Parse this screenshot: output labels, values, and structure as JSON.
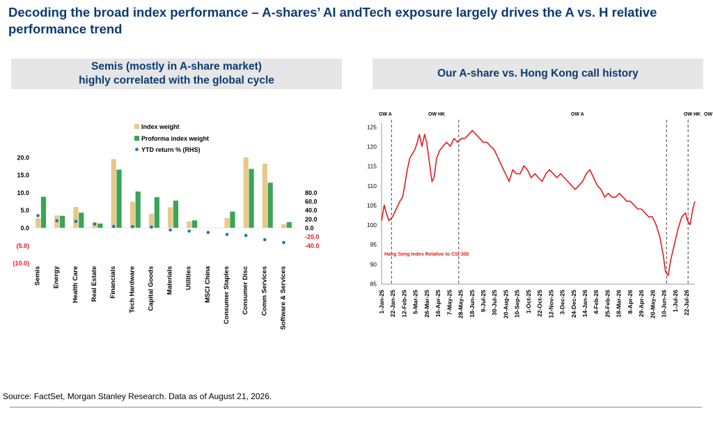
{
  "title": "Decoding the broad index performance – A-shares’ AI andTech exposure largely drives the A vs. H relative performance trend",
  "left_panel": {
    "header_line1": "Semis (mostly in A-share market)",
    "header_line2": "highly correlated with the global cycle"
  },
  "right_panel": {
    "header": "Our A-share vs. Hong Kong call history"
  },
  "source": "Source: FactSet, Morgan Stanley Research. Data as of August 21, 2026.",
  "colors": {
    "index_weight": "#e8c98a",
    "proforma_weight": "#3aa457",
    "ytd_return": "#1f77b4",
    "line": "#e8191d",
    "negative_tick": "#e8191d",
    "title": "#0b3b73"
  },
  "chart_data": [
    {
      "type": "bar",
      "title": "",
      "categories": [
        "Semis",
        "Energy",
        "Health Care",
        "Real Estate",
        "Financials",
        "Tech Hardware",
        "Capital Goods",
        "Materials",
        "Utilities",
        "MSCI China",
        "Consumer Staples",
        "Consumer Disc",
        "Comm Services",
        "Software & Services"
      ],
      "series": [
        {
          "name": "Index weight",
          "kind": "bar",
          "axis": "left",
          "values": [
            2.7,
            3.5,
            5.9,
            1.6,
            19.5,
            7.4,
            4.0,
            5.8,
            1.8,
            null,
            2.8,
            20.0,
            18.2,
            1.0
          ]
        },
        {
          "name": "Proforma index weight",
          "kind": "bar",
          "axis": "left",
          "values": [
            8.8,
            3.4,
            4.3,
            1.2,
            16.5,
            10.3,
            8.7,
            7.7,
            2.1,
            null,
            4.6,
            16.7,
            12.8,
            1.6
          ]
        },
        {
          "name": "YTD return % (RHS)",
          "kind": "scatter",
          "axis": "right",
          "values": [
            27.5,
            16.0,
            14.5,
            8.5,
            3.0,
            2.5,
            1.5,
            -5.0,
            -7.5,
            -10.5,
            -15.0,
            -17.5,
            -27.0,
            -33.5
          ]
        }
      ],
      "y_left": {
        "range": [
          -10,
          20
        ],
        "ticks": [
          "20.0",
          "15.0",
          "10.0",
          "5.0",
          "0.0",
          "(5.0)",
          "(10.0)"
        ]
      },
      "y_right": {
        "range": [
          -40,
          80
        ],
        "ticks": [
          "80.0",
          "60.0",
          "40.0",
          "20.0",
          "0.0",
          "-20.0",
          "-40.0"
        ]
      },
      "legend": {
        "position": "top-center",
        "entries": [
          "Index weight",
          "Proforma index weight",
          "YTD return % (RHS)"
        ]
      },
      "grid": false
    },
    {
      "type": "line",
      "title": "",
      "series_label": "Hang Seng Index Relative to CSI 300",
      "y_range": [
        85,
        125
      ],
      "y_ticks": [
        "125",
        "120",
        "115",
        "110",
        "105",
        "100",
        "95",
        "90",
        "85"
      ],
      "x_range": [
        "2025-01-01",
        "2026-08-21"
      ],
      "x_ticks": [
        "1-Jan-25",
        "22-Jan-25",
        "12-Feb-25",
        "5-Mar-25",
        "26-Mar-25",
        "16-Apr-25",
        "7-May-25",
        "28-May-25",
        "18-Jun-25",
        "9-Jul-25",
        "30-Jul-25",
        "20-Aug-25",
        "10-Sep-25",
        "1-Oct-25",
        "22-Oct-25",
        "12-Nov-25",
        "3-Dec-25",
        "24-Dec-25",
        "14-Jan-26",
        "4-Feb-26",
        "25-Feb-26",
        "18-Mar-26",
        "8-Apr-26",
        "29-Apr-26",
        "20-May-26",
        "10-Jun-26",
        "1-Jul-26",
        "22-Jul-26"
      ],
      "calls": [
        {
          "label": "OW A",
          "date": "2025-01-20"
        },
        {
          "label": "OW HK",
          "date": "2025-05-28"
        },
        {
          "label": "OW A",
          "date": ""
        },
        {
          "label": "OW HK",
          "date": "2026-06-28"
        },
        {
          "label": "OW A",
          "date": "2026-08-08"
        }
      ],
      "x_dates": [
        "2025-01-01",
        "2025-01-06",
        "2025-01-10",
        "2025-01-15",
        "2025-01-22",
        "2025-01-29",
        "2025-02-05",
        "2025-02-10",
        "2025-02-14",
        "2025-02-19",
        "2025-02-24",
        "2025-02-28",
        "2025-03-05",
        "2025-03-10",
        "2025-03-14",
        "2025-03-19",
        "2025-03-24",
        "2025-03-28",
        "2025-04-02",
        "2025-04-07",
        "2025-04-11",
        "2025-04-16",
        "2025-04-22",
        "2025-04-28",
        "2025-05-05",
        "2025-05-12",
        "2025-05-19",
        "2025-05-26",
        "2025-06-02",
        "2025-06-09",
        "2025-06-16",
        "2025-06-23",
        "2025-06-30",
        "2025-07-07",
        "2025-07-14",
        "2025-07-21",
        "2025-07-28",
        "2025-08-04",
        "2025-08-11",
        "2025-08-18",
        "2025-08-25",
        "2025-09-01",
        "2025-09-08",
        "2025-09-15",
        "2025-09-22",
        "2025-09-29",
        "2025-10-06",
        "2025-10-13",
        "2025-10-20",
        "2025-10-27",
        "2025-11-03",
        "2025-11-10",
        "2025-11-17",
        "2025-11-24",
        "2025-12-01",
        "2025-12-08",
        "2025-12-15",
        "2025-12-22",
        "2025-12-29",
        "2026-01-05",
        "2026-01-12",
        "2026-01-19",
        "2026-01-26",
        "2026-02-02",
        "2026-02-09",
        "2026-02-16",
        "2026-02-23",
        "2026-03-02",
        "2026-03-09",
        "2026-03-16",
        "2026-03-23",
        "2026-03-30",
        "2026-04-06",
        "2026-04-13",
        "2026-04-20",
        "2026-04-27",
        "2026-05-04",
        "2026-05-11",
        "2026-05-18",
        "2026-05-25",
        "2026-06-01",
        "2026-06-08",
        "2026-06-15",
        "2026-06-22",
        "2026-06-26",
        "2026-07-01",
        "2026-07-06",
        "2026-07-13",
        "2026-07-20",
        "2026-07-27",
        "2026-08-03",
        "2026-08-07",
        "2026-08-12",
        "2026-08-17",
        "2026-08-21"
      ],
      "y_values": [
        101,
        105,
        103,
        101,
        102,
        104,
        106,
        107,
        110,
        114,
        117,
        118,
        119,
        121,
        123,
        120,
        123,
        121,
        116,
        111,
        112,
        117,
        119,
        120,
        121,
        120,
        122,
        121,
        122,
        122,
        123,
        124,
        123,
        122,
        121,
        121,
        120,
        119,
        117,
        115,
        113,
        111,
        114,
        113,
        113,
        115,
        114,
        112,
        113,
        112,
        111,
        113,
        114,
        113,
        112,
        113,
        112,
        111,
        110,
        109,
        110,
        111,
        113,
        114,
        112,
        110,
        109,
        107,
        108,
        107,
        107,
        108,
        107,
        106,
        106,
        105,
        104,
        104,
        103,
        102,
        102,
        100,
        97,
        92,
        88,
        87,
        91,
        95,
        99,
        102,
        103,
        101,
        100,
        104,
        106
      ]
    }
  ]
}
